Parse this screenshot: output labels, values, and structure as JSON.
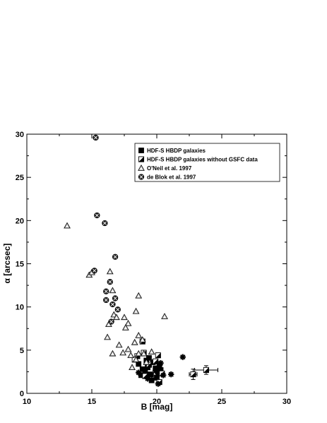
{
  "chart_data": {
    "type": "scatter",
    "xlabel": "B [mag]",
    "ylabel": "α [arcsec]",
    "xlim": [
      10,
      30
    ],
    "ylim": [
      0,
      30
    ],
    "x_ticks": [
      10,
      15,
      20,
      25,
      30
    ],
    "y_ticks": [
      0,
      5,
      10,
      15,
      20,
      25,
      30
    ],
    "grid": false,
    "legend_position": "top-right",
    "series": [
      {
        "name": "HDF-S HBDP galaxies",
        "marker": "filled-square",
        "points": [
          [
            18.6,
            3.4
          ],
          [
            18.9,
            2.8
          ],
          [
            19.1,
            2.5
          ],
          [
            19.3,
            3.0
          ],
          [
            19.5,
            2.2
          ],
          [
            19.7,
            3.6
          ],
          [
            19.9,
            2.9
          ],
          [
            20.1,
            2.4
          ],
          [
            20.2,
            3.3
          ],
          [
            19.4,
            4.1
          ],
          [
            18.8,
            2.1
          ],
          [
            20.0,
            1.8
          ],
          [
            19.6,
            1.5
          ],
          [
            20.3,
            2.7
          ],
          [
            19.2,
            3.8
          ]
        ]
      },
      {
        "name": "HDF-S HBDP galaxies without GSFC data",
        "marker": "half-filled-square",
        "points": [
          [
            18.5,
            4.3
          ],
          [
            18.9,
            6.0
          ],
          [
            19.0,
            4.7
          ],
          [
            19.4,
            3.3
          ],
          [
            19.9,
            3.7
          ],
          [
            20.1,
            4.4
          ],
          [
            18.3,
            3.9
          ],
          [
            19.1,
            2.0
          ],
          [
            20.4,
            2.3
          ],
          [
            22.8,
            2.2
          ],
          [
            23.8,
            2.7
          ],
          [
            20.2,
            1.3
          ]
        ]
      },
      {
        "name": "O'Neil et al. 1997",
        "marker": "open-triangle",
        "points": [
          [
            13.1,
            19.4
          ],
          [
            14.8,
            13.7
          ],
          [
            15.0,
            14.0
          ],
          [
            16.4,
            14.1
          ],
          [
            16.6,
            11.9
          ],
          [
            16.7,
            9.1
          ],
          [
            16.9,
            8.8
          ],
          [
            17.5,
            8.8
          ],
          [
            17.8,
            8.1
          ],
          [
            17.6,
            7.6
          ],
          [
            18.4,
            9.5
          ],
          [
            18.6,
            11.3
          ],
          [
            20.6,
            8.9
          ],
          [
            16.3,
            8.0
          ],
          [
            16.2,
            6.5
          ],
          [
            17.1,
            5.6
          ],
          [
            17.8,
            5.1
          ],
          [
            18.3,
            5.9
          ],
          [
            18.6,
            6.7
          ],
          [
            18.9,
            6.2
          ],
          [
            19.0,
            4.6
          ],
          [
            18.6,
            4.6
          ],
          [
            17.4,
            4.7
          ],
          [
            16.6,
            4.6
          ],
          [
            18.0,
            4.4
          ],
          [
            18.4,
            3.9
          ],
          [
            19.2,
            3.6
          ],
          [
            18.1,
            3.0
          ],
          [
            19.6,
            4.8
          ]
        ]
      },
      {
        "name": "de Blok et al. 1997",
        "marker": "filled-circle-cross",
        "points": [
          [
            15.3,
            29.6
          ],
          [
            15.4,
            20.6
          ],
          [
            16.0,
            19.7
          ],
          [
            16.8,
            15.8
          ],
          [
            15.2,
            14.2
          ],
          [
            16.4,
            12.9
          ],
          [
            16.1,
            11.8
          ],
          [
            16.8,
            11.0
          ],
          [
            16.1,
            10.8
          ],
          [
            16.6,
            10.3
          ],
          [
            17.0,
            9.7
          ],
          [
            16.5,
            8.3
          ]
        ]
      },
      {
        "name": "",
        "marker": "starburst",
        "points": [
          [
            22.0,
            4.2
          ],
          [
            20.3,
            3.5
          ],
          [
            19.9,
            2.6
          ],
          [
            19.6,
            2.1
          ],
          [
            20.5,
            2.1
          ],
          [
            21.1,
            2.2
          ],
          [
            18.6,
            2.4
          ],
          [
            19.3,
            1.7
          ],
          [
            20.1,
            1.1
          ]
        ]
      }
    ],
    "error_bars": [
      {
        "x": 22.8,
        "y": 2.2,
        "xerr": 0.3,
        "yerr": 0.6
      },
      {
        "x": 23.8,
        "y": 2.7,
        "xerr": 0.9,
        "yerr": 0.5
      }
    ]
  }
}
